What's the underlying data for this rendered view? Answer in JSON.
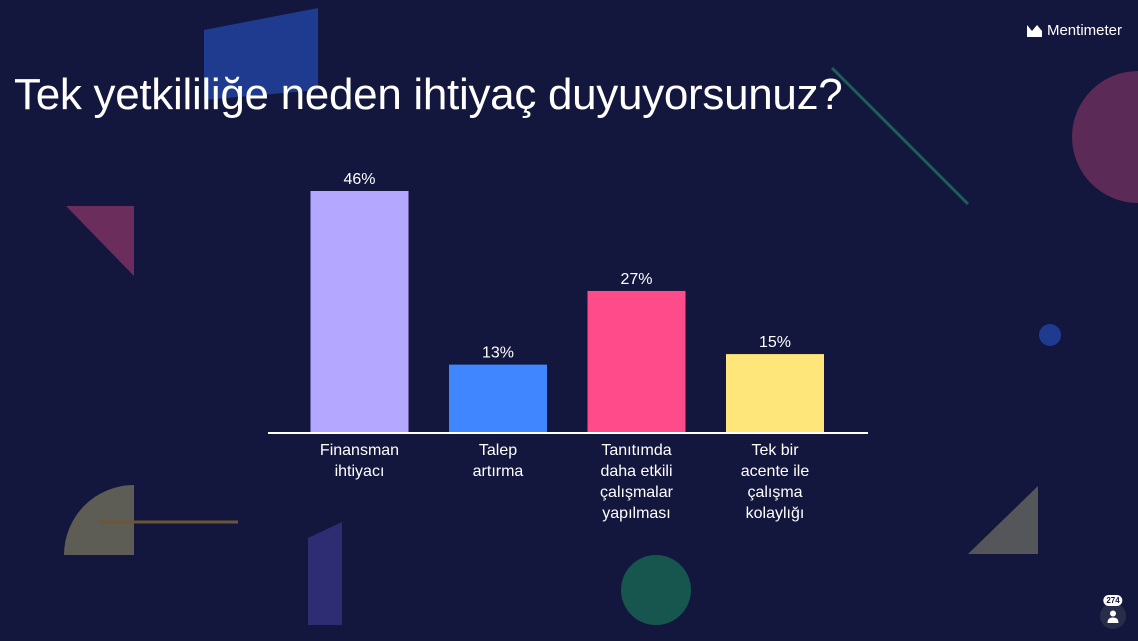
{
  "brand": {
    "name": "Mentimeter",
    "icon": "mentimeter-logo-icon"
  },
  "question": {
    "title": "Tek yetkililiğe neden ihtiyaç duyuyorsunuz?"
  },
  "participants": {
    "count": "274",
    "icon": "person-icon"
  },
  "colors": {
    "background": "#14173d",
    "bars": [
      "#b4a7ff",
      "#3f86ff",
      "#ff4b8a",
      "#ffe67b"
    ],
    "baseline": "#ffffff"
  },
  "chart_data": {
    "type": "bar",
    "title": "Tek yetkililiğe neden ihtiyaç duyuyorsunuz?",
    "categories": [
      [
        "Finansman",
        "ihtiyacı"
      ],
      [
        "Talep",
        "artırma"
      ],
      [
        "Tanıtımda",
        "daha etkili",
        "çalışmalar",
        "yapılması"
      ],
      [
        "Tek bir",
        "acente ile",
        "çalışma",
        "kolaylığı"
      ]
    ],
    "values": [
      46,
      13,
      27,
      15
    ],
    "value_labels": [
      "46%",
      "13%",
      "27%",
      "15%"
    ],
    "unit": "%",
    "ylim": [
      0,
      46
    ],
    "grid": false,
    "legend": "none"
  }
}
